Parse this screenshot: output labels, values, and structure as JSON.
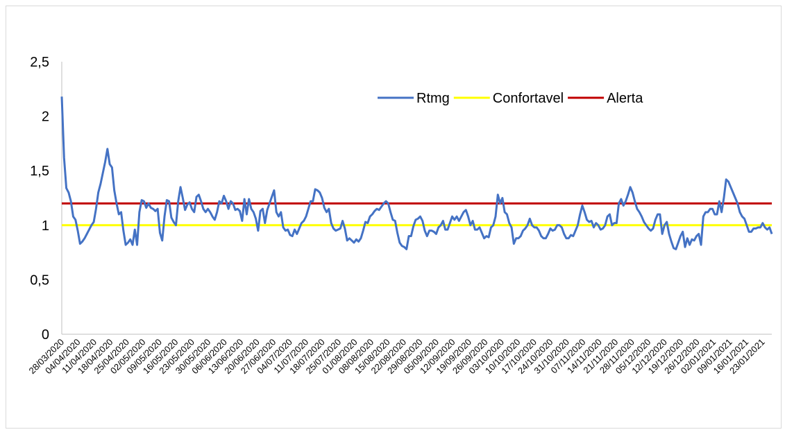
{
  "chart_data": {
    "type": "line",
    "title": "",
    "xlabel": "",
    "ylabel": "",
    "ylim": [
      0,
      2.5
    ],
    "y_ticks": [
      "0",
      "0,5",
      "1",
      "1,5",
      "2",
      "2,5"
    ],
    "x_start": "28/03/2020",
    "x_end": "27/01/2021",
    "x_ticks": [
      "28/03/2020",
      "04/04/2020",
      "11/04/2020",
      "18/04/2020",
      "25/04/2020",
      "02/05/2020",
      "09/05/2020",
      "16/05/2020",
      "23/05/2020",
      "30/05/2020",
      "06/06/2020",
      "13/06/2020",
      "20/06/2020",
      "27/06/2020",
      "04/07/2020",
      "11/07/2020",
      "18/07/2020",
      "25/07/2020",
      "01/08/2020",
      "08/08/2020",
      "15/08/2020",
      "22/08/2020",
      "29/08/2020",
      "05/09/2020",
      "12/09/2020",
      "19/09/2020",
      "26/09/2020",
      "03/10/2020",
      "10/10/2020",
      "17/10/2020",
      "24/10/2020",
      "31/10/2020",
      "07/11/2020",
      "14/11/2020",
      "21/11/2020",
      "28/11/2020",
      "05/12/2020",
      "12/12/2020",
      "19/12/2020",
      "26/12/2020",
      "02/01/2021",
      "09/01/2021",
      "16/01/2021",
      "23/01/2021"
    ],
    "legend_position": "top-right",
    "grid": false,
    "series": [
      {
        "name": "Rtmg",
        "color": "#4472c4",
        "values": [
          2.18,
          1.62,
          1.34,
          1.3,
          1.22,
          1.08,
          1.05,
          0.95,
          0.83,
          0.85,
          0.88,
          0.92,
          0.96,
          1.0,
          1.03,
          1.15,
          1.3,
          1.38,
          1.48,
          1.58,
          1.7,
          1.56,
          1.53,
          1.32,
          1.2,
          1.1,
          1.12,
          0.95,
          0.82,
          0.84,
          0.87,
          0.82,
          0.96,
          0.82,
          1.12,
          1.23,
          1.22,
          1.16,
          1.2,
          1.16,
          1.15,
          1.13,
          1.15,
          0.93,
          0.86,
          1.08,
          1.23,
          1.22,
          1.07,
          1.03,
          1.0,
          1.22,
          1.35,
          1.25,
          1.14,
          1.19,
          1.21,
          1.15,
          1.12,
          1.26,
          1.28,
          1.22,
          1.15,
          1.12,
          1.15,
          1.12,
          1.08,
          1.05,
          1.12,
          1.22,
          1.2,
          1.27,
          1.22,
          1.15,
          1.22,
          1.2,
          1.14,
          1.15,
          1.13,
          1.04,
          1.24,
          1.1,
          1.24,
          1.15,
          1.12,
          1.06,
          0.95,
          1.13,
          1.15,
          1.02,
          1.14,
          1.2,
          1.26,
          1.32,
          1.12,
          1.08,
          1.12,
          0.98,
          0.95,
          0.96,
          0.91,
          0.9,
          0.96,
          0.92,
          0.97,
          1.02,
          1.04,
          1.08,
          1.15,
          1.22,
          1.22,
          1.33,
          1.32,
          1.3,
          1.25,
          1.16,
          1.12,
          1.15,
          1.02,
          0.97,
          0.95,
          0.96,
          0.97,
          1.04,
          0.97,
          0.86,
          0.88,
          0.86,
          0.84,
          0.87,
          0.85,
          0.88,
          0.95,
          1.03,
          1.02,
          1.08,
          1.1,
          1.13,
          1.15,
          1.14,
          1.17,
          1.2,
          1.22,
          1.2,
          1.12,
          1.05,
          1.04,
          0.93,
          0.84,
          0.81,
          0.8,
          0.78,
          0.9,
          0.9,
          0.99,
          1.05,
          1.06,
          1.08,
          1.04,
          0.95,
          0.9,
          0.95,
          0.95,
          0.94,
          0.92,
          0.98,
          1.0,
          1.04,
          0.96,
          0.96,
          1.02,
          1.08,
          1.05,
          1.08,
          1.04,
          1.08,
          1.12,
          1.14,
          1.08,
          1.0,
          1.04,
          0.96,
          0.96,
          0.98,
          0.93,
          0.88,
          0.9,
          0.89,
          0.98,
          1.0,
          1.08,
          1.28,
          1.2,
          1.25,
          1.12,
          1.1,
          1.02,
          0.98,
          0.83,
          0.88,
          0.88,
          0.9,
          0.95,
          0.97,
          1.0,
          1.06,
          1.0,
          0.98,
          0.98,
          0.95,
          0.9,
          0.88,
          0.88,
          0.92,
          0.97,
          0.95,
          0.96,
          1.0,
          1.0,
          0.98,
          0.92,
          0.88,
          0.88,
          0.91,
          0.9,
          0.95,
          1.0,
          1.1,
          1.18,
          1.12,
          1.05,
          1.03,
          1.04,
          0.98,
          1.02,
          1.0,
          0.96,
          0.97,
          1.0,
          1.08,
          1.1,
          1.0,
          1.02,
          1.02,
          1.2,
          1.24,
          1.18,
          1.22,
          1.28,
          1.35,
          1.3,
          1.22,
          1.15,
          1.12,
          1.08,
          1.03,
          1.0,
          0.97,
          0.95,
          0.97,
          1.05,
          1.1,
          1.1,
          0.92,
          1.0,
          1.03,
          0.92,
          0.85,
          0.79,
          0.78,
          0.84,
          0.9,
          0.94,
          0.8,
          0.88,
          0.82,
          0.87,
          0.86,
          0.9,
          0.92,
          0.82,
          1.08,
          1.12,
          1.12,
          1.15,
          1.15,
          1.1,
          1.1,
          1.22,
          1.12,
          1.25,
          1.42,
          1.4,
          1.35,
          1.3,
          1.25,
          1.2,
          1.12,
          1.08,
          1.06,
          1.0,
          0.94,
          0.94,
          0.97,
          0.97,
          0.98,
          0.98,
          1.02,
          0.98,
          0.96,
          0.98,
          0.92
        ]
      },
      {
        "name": "Confortavel",
        "color": "#ffff00",
        "constant": 1.0
      },
      {
        "name": "Alerta",
        "color": "#c00000",
        "constant": 1.2
      }
    ]
  }
}
